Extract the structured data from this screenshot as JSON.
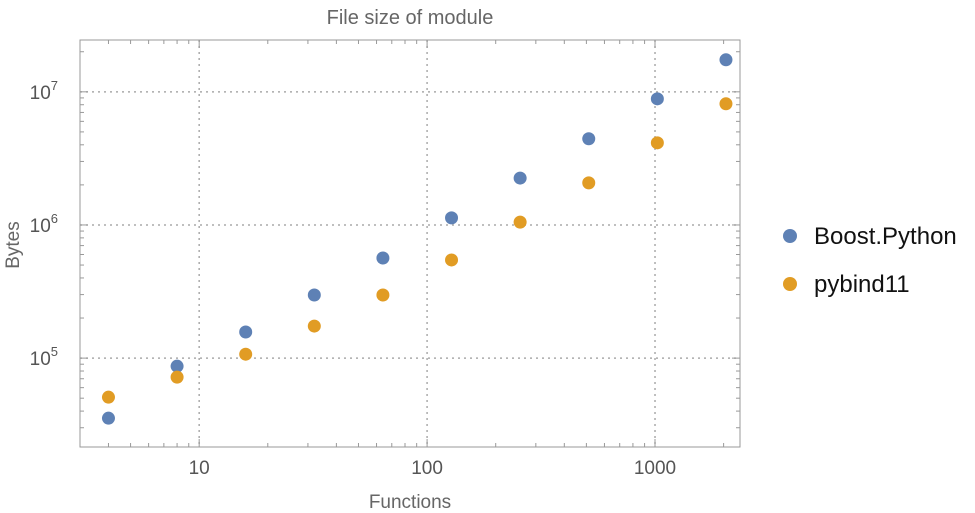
{
  "chart_data": {
    "type": "scatter",
    "title": "File size of module",
    "xlabel": "Functions",
    "ylabel": "Bytes",
    "xscale": "log",
    "yscale": "log",
    "xlim": [
      3,
      2360
    ],
    "ylim": [
      21500,
      24500000
    ],
    "grid": true,
    "legend_position": "right",
    "x_ticks": [
      {
        "value": 10,
        "label": "10"
      },
      {
        "value": 100,
        "label": "100"
      },
      {
        "value": 1000,
        "label": "1000"
      }
    ],
    "y_ticks": [
      {
        "value": 100000,
        "base": "10",
        "exp": "5"
      },
      {
        "value": 1000000,
        "base": "10",
        "exp": "6"
      },
      {
        "value": 10000000,
        "base": "10",
        "exp": "7"
      }
    ],
    "x": [
      4,
      8,
      16,
      32,
      64,
      128,
      256,
      512,
      1024,
      2048
    ],
    "series": [
      {
        "name": "Boost.Python",
        "color": "#5e81b5",
        "values": [
          35400,
          87000,
          157000,
          298000,
          565000,
          1130000,
          2250000,
          4440000,
          8860000,
          17400000
        ]
      },
      {
        "name": "pybind11",
        "color": "#e19c24",
        "values": [
          50900,
          72000,
          107000,
          174000,
          298000,
          546000,
          1050000,
          2070000,
          4140000,
          8130000
        ]
      }
    ]
  }
}
